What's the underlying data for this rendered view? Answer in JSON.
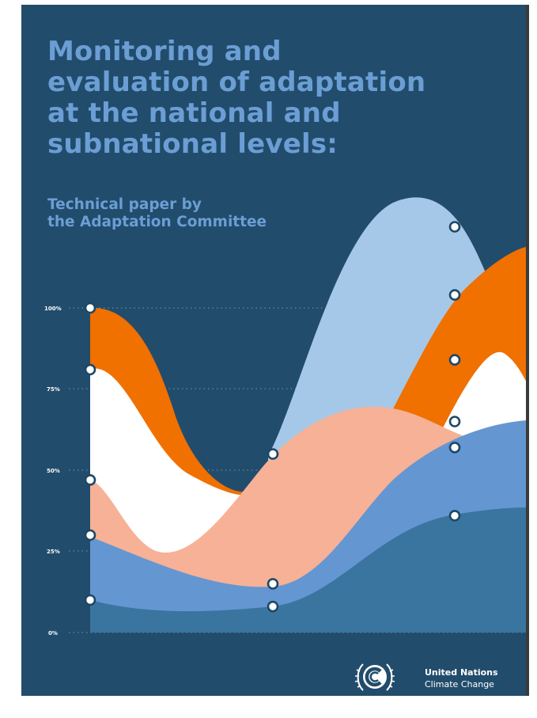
{
  "cover": {
    "title_lines": [
      "Monitoring and",
      "evaluation of adaptation",
      "at the national and",
      "subnational levels:"
    ],
    "subtitle_lines": [
      "Technical paper by",
      "the Adaptation Committee"
    ],
    "colors": {
      "background": "#224c6c",
      "title": "#6b9ed4",
      "orange": "#f07000",
      "light_blue": "#a6c8e8",
      "white": "#ffffff",
      "peach": "#f6b196",
      "mid_blue": "#6496d2",
      "dark_blue": "#3a75a0"
    }
  },
  "chart_data": {
    "type": "area",
    "y_tick_labels": [
      "100%",
      "75%",
      "50%",
      "25%",
      "0%"
    ],
    "y_ticks": [
      100,
      75,
      50,
      25,
      0
    ],
    "ylim": [
      0,
      100
    ],
    "grid": true,
    "marker_points": [
      {
        "x": 0,
        "y": 100
      },
      {
        "x": 0,
        "y": 81
      },
      {
        "x": 0,
        "y": 47
      },
      {
        "x": 0,
        "y": 30
      },
      {
        "x": 0,
        "y": 10
      },
      {
        "x": 1,
        "y": 55
      },
      {
        "x": 1,
        "y": 15
      },
      {
        "x": 1,
        "y": 8
      },
      {
        "x": 2,
        "y": 125
      },
      {
        "x": 2,
        "y": 104
      },
      {
        "x": 2,
        "y": 84
      },
      {
        "x": 2,
        "y": 65
      },
      {
        "x": 2,
        "y": 57
      },
      {
        "x": 2,
        "y": 36
      }
    ]
  },
  "footer": {
    "org_line1": "United Nations",
    "org_line2": "Climate Change",
    "logo_icon": "unfccc-emblem-icon"
  }
}
